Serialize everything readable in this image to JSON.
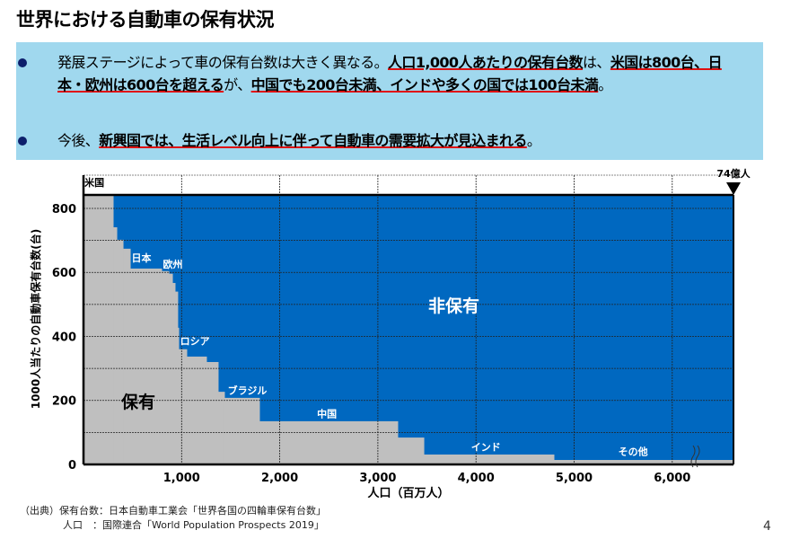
{
  "title": "世界における自動車の保有状況",
  "bullets": [
    {
      "parts": [
        {
          "t": "発展ステージによって車の保有台数は大きく異なる。",
          "u": false
        },
        {
          "t": "人口1,000人あたりの保有台数",
          "u": true
        },
        {
          "t": "は、",
          "u": false
        },
        {
          "t": "米国は800台、日本・欧州は600台を超える",
          "u": true
        },
        {
          "t": "が、",
          "u": false
        },
        {
          "t": "中国でも200台未満、インドや多くの国では100台未満",
          "u": true
        },
        {
          "t": "。",
          "u": false
        }
      ]
    },
    {
      "parts": [
        {
          "t": "今後、",
          "u": false
        },
        {
          "t": "新興国では、生活レベル向上に伴って自動車の需要拡大が見込まれる",
          "u": true
        },
        {
          "t": "。",
          "u": false
        }
      ]
    }
  ],
  "chart_data": {
    "type": "area",
    "xlabel": "人口（百万人）",
    "ylabel": "1000人当たりの自動車保有台数(台)",
    "xlim": [
      0,
      6624
    ],
    "ylim": [
      0,
      842
    ],
    "xticks": [
      1000,
      2000,
      3000,
      4000,
      5000,
      6000
    ],
    "xtick_labels": [
      "1,000",
      "2,000",
      "3,000",
      "4,000",
      "5,000",
      "6,000"
    ],
    "yticks": [
      0,
      200,
      400,
      600,
      800
    ],
    "ytick_labels": [
      "0",
      "200",
      "400",
      "600",
      "800"
    ],
    "grid": true,
    "axis_break": true,
    "total_marker": "74億人",
    "steps": [
      {
        "x0": 0,
        "x1": 302,
        "y": 842
      },
      {
        "x0": 302,
        "x1": 339,
        "y": 741
      },
      {
        "x0": 339,
        "x1": 403,
        "y": 702
      },
      {
        "x0": 403,
        "x1": 476,
        "y": 674
      },
      {
        "x0": 476,
        "x1": 796,
        "y": 612
      },
      {
        "x0": 796,
        "x1": 869,
        "y": 604
      },
      {
        "x0": 869,
        "x1": 906,
        "y": 596
      },
      {
        "x0": 906,
        "x1": 933,
        "y": 567
      },
      {
        "x0": 933,
        "x1": 960,
        "y": 540
      },
      {
        "x0": 960,
        "x1": 970,
        "y": 427
      },
      {
        "x0": 970,
        "x1": 1052,
        "y": 360
      },
      {
        "x0": 1052,
        "x1": 1253,
        "y": 337
      },
      {
        "x0": 1253,
        "x1": 1372,
        "y": 320
      },
      {
        "x0": 1372,
        "x1": 1436,
        "y": 227
      },
      {
        "x0": 1436,
        "x1": 1793,
        "y": 208
      },
      {
        "x0": 1793,
        "x1": 3202,
        "y": 135
      },
      {
        "x0": 3202,
        "x1": 3468,
        "y": 84
      },
      {
        "x0": 3468,
        "x1": 4794,
        "y": 31
      },
      {
        "x0": 4794,
        "x1": 6624,
        "y": 14
      }
    ],
    "labels": [
      {
        "text": "米国",
        "x": 10,
        "y": 870,
        "color": "#000"
      },
      {
        "text": "日本",
        "x": 490,
        "y": 635,
        "color": "#fff"
      },
      {
        "text": "欧州",
        "x": 810,
        "y": 615,
        "color": "#fff"
      },
      {
        "text": "ロシア",
        "x": 985,
        "y": 375,
        "color": "#fff"
      },
      {
        "text": "ブラジル",
        "x": 1470,
        "y": 220,
        "color": "#fff"
      },
      {
        "text": "中国",
        "x": 2380,
        "y": 148,
        "color": "#fff"
      },
      {
        "text": "インド",
        "x": 3950,
        "y": 44,
        "color": "#fff"
      },
      {
        "text": "その他",
        "x": 5450,
        "y": 30,
        "color": "#fff"
      }
    ],
    "region_labels": {
      "owned": "保有",
      "not_owned": "非保有"
    },
    "colors": {
      "owned": "#bfbfbf",
      "not_owned": "#0068c0"
    }
  },
  "source": {
    "line1": "（出典）保有台数：日本自動車工業会「世界各国の四輪車保有台数」",
    "line2": "人口　：国際連合「World Population Prospects 2019」"
  },
  "page_number": "4"
}
